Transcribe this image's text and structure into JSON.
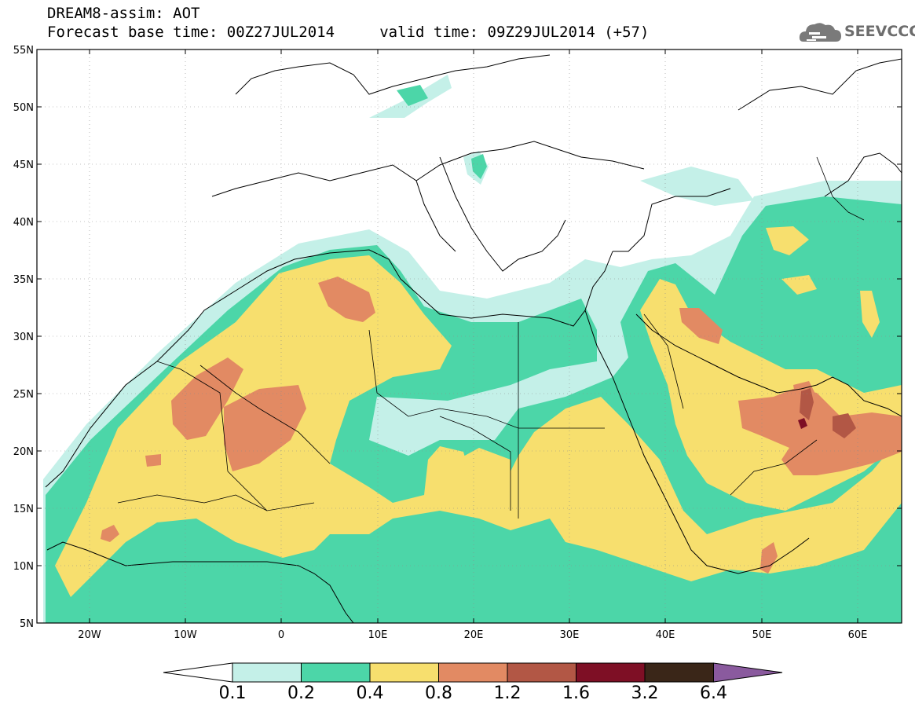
{
  "header": {
    "title": "DREAM8-assim: AOT",
    "subtitle": "Forecast base time: 00Z27JUL2014     valid time: 09Z29JUL2014 (+57)"
  },
  "logo": {
    "text": "SEEVCCC",
    "icon": "cloud-icon"
  },
  "map": {
    "lat_labels": [
      "55N",
      "50N",
      "45N",
      "40N",
      "35N",
      "30N",
      "25N",
      "20N",
      "15N",
      "10N",
      "5N"
    ],
    "lon_labels": [
      "20W",
      "10W",
      "0",
      "10E",
      "20E",
      "30E",
      "40E",
      "50E",
      "60E"
    ],
    "lat_range": [
      5,
      55
    ],
    "lon_range": [
      -25,
      65
    ],
    "colors": {
      "0.1-0.2": "#c4f0e8",
      "0.2-0.4": "#4cd6a8",
      "0.4-0.8": "#f7df6e",
      "0.8-1.2": "#e28a63",
      "1.2-1.6": "#b25745",
      "1.6-3.2": "#7e0f25",
      "3.2-6.4": "#3a2618",
      ">6.4": "#8a5a9e"
    }
  },
  "colorbar": {
    "labels": [
      "0.1",
      "0.2",
      "0.4",
      "0.8",
      "1.2",
      "1.6",
      "3.2",
      "6.4"
    ],
    "colors": [
      "#ffffff",
      "#c4f0e8",
      "#4cd6a8",
      "#f7df6e",
      "#e28a63",
      "#b25745",
      "#7e0f25",
      "#3a2618",
      "#8a5a9e"
    ]
  }
}
